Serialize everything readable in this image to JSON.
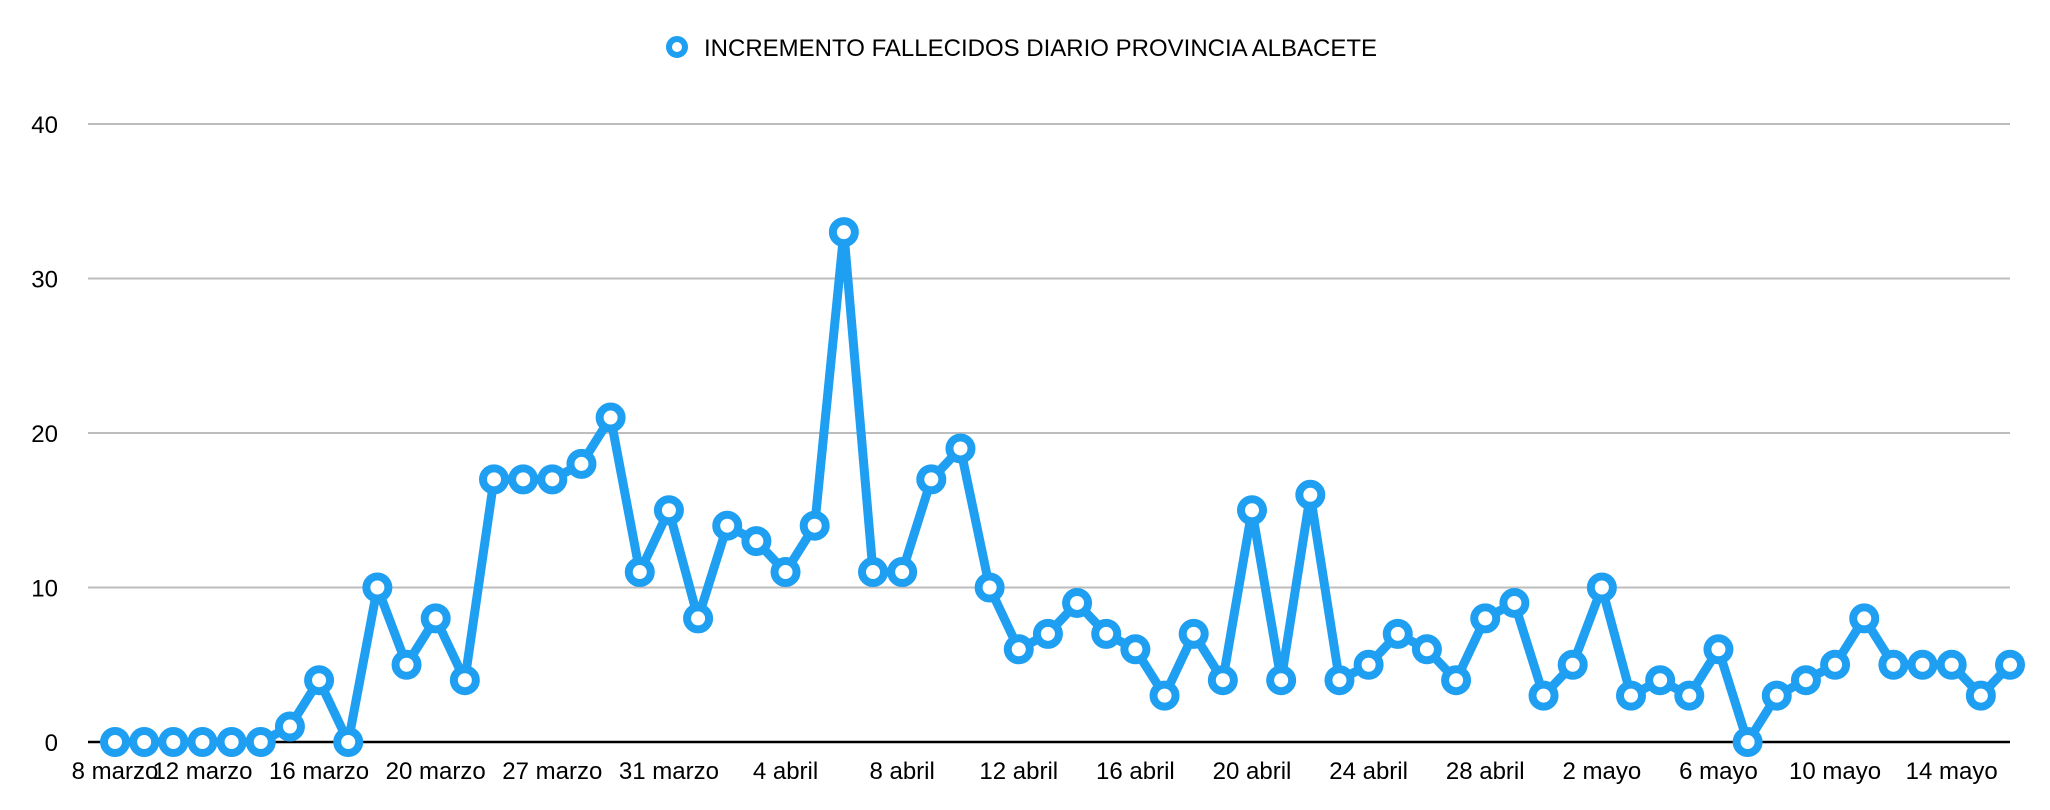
{
  "chart_data": {
    "type": "line",
    "title": "",
    "xlabel": "",
    "ylabel": "",
    "ylim": [
      0,
      40
    ],
    "y_ticks": [
      "0",
      "10",
      "20",
      "30",
      "40"
    ],
    "grid": true,
    "legend_position": "top-center",
    "colors": {
      "series": "#1e9ff2",
      "grid": "#bdbdbd",
      "axis": "#000000"
    },
    "x_tick_labels": [
      {
        "index": 0,
        "label": "8 marzo"
      },
      {
        "index": 3,
        "label": "12 marzo"
      },
      {
        "index": 7,
        "label": "16 marzo"
      },
      {
        "index": 11,
        "label": "20 marzo"
      },
      {
        "index": 15,
        "label": "27 marzo"
      },
      {
        "index": 19,
        "label": "31 marzo"
      },
      {
        "index": 23,
        "label": "4 abril"
      },
      {
        "index": 27,
        "label": "8 abril"
      },
      {
        "index": 31,
        "label": "12 abril"
      },
      {
        "index": 35,
        "label": "16 abril"
      },
      {
        "index": 39,
        "label": "20 abril"
      },
      {
        "index": 43,
        "label": "24 abril"
      },
      {
        "index": 47,
        "label": "28 abril"
      },
      {
        "index": 51,
        "label": "2 mayo"
      },
      {
        "index": 55,
        "label": "6 mayo"
      },
      {
        "index": 59,
        "label": "10 mayo"
      },
      {
        "index": 63,
        "label": "14 mayo"
      }
    ],
    "series": [
      {
        "name": "INCREMENTO FALLECIDOS DIARIO PROVINCIA ALBACETE",
        "values": [
          0,
          0,
          0,
          0,
          0,
          0,
          1,
          4,
          0,
          10,
          5,
          8,
          4,
          17,
          17,
          17,
          18,
          21,
          11,
          15,
          8,
          14,
          13,
          11,
          14,
          33,
          11,
          11,
          17,
          19,
          10,
          6,
          7,
          9,
          7,
          6,
          3,
          7,
          4,
          15,
          4,
          16,
          4,
          5,
          7,
          6,
          4,
          8,
          9,
          3,
          5,
          10,
          3,
          4,
          3,
          6,
          0,
          3,
          4,
          5,
          8,
          5,
          5,
          5,
          3,
          5
        ]
      }
    ]
  }
}
